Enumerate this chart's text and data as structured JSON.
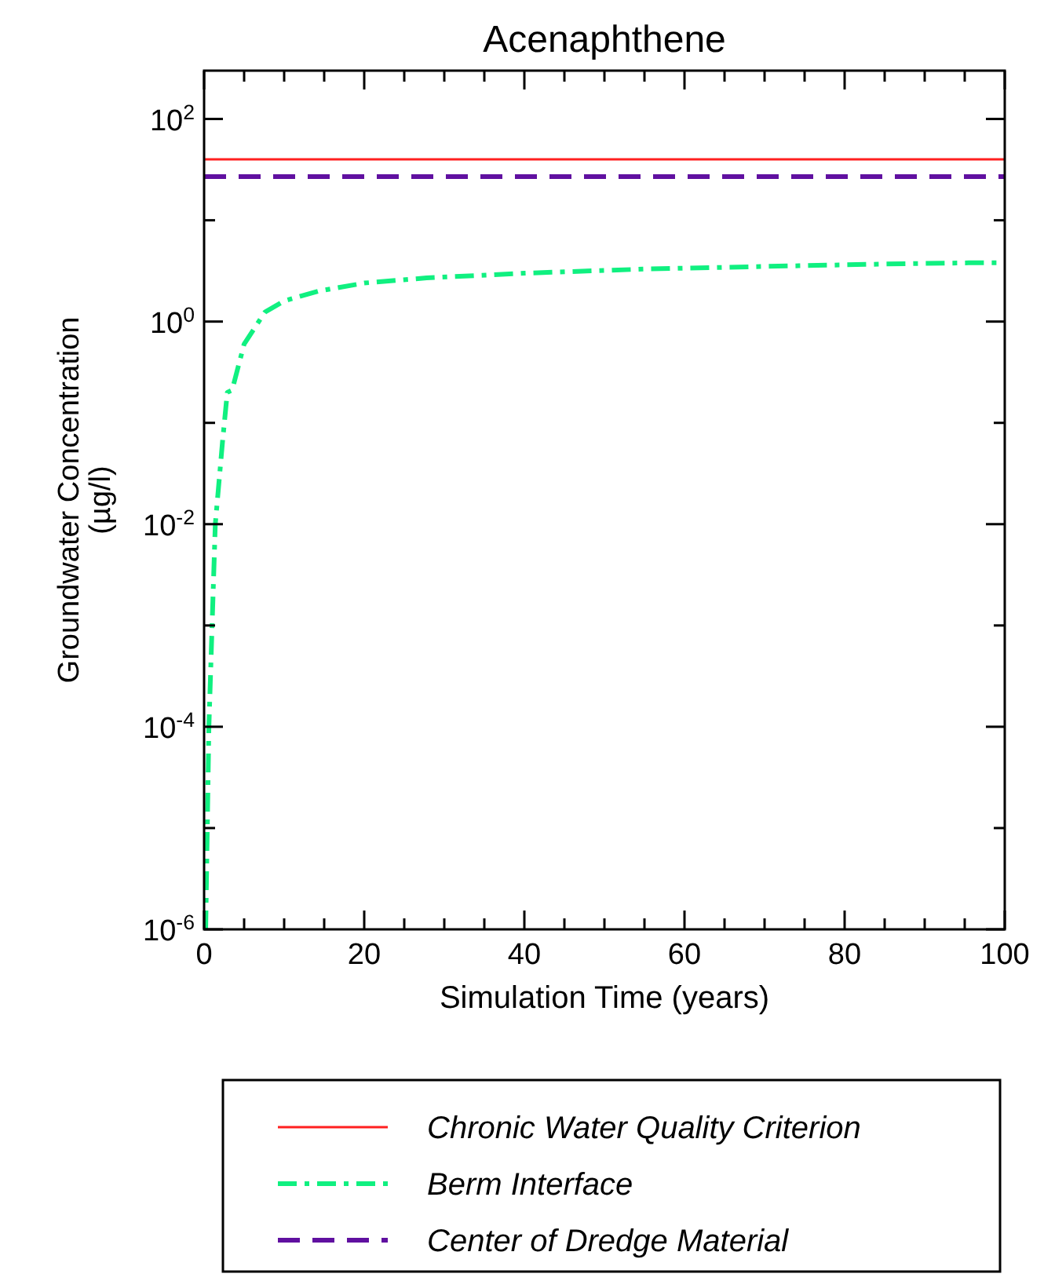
{
  "chart_data": {
    "type": "line",
    "title": "Acenaphthene",
    "xlabel": "Simulation Time (years)",
    "ylabel": "Groundwater Concentration\n(µg/l)",
    "log": "y",
    "legend": "bottom",
    "grid": false,
    "xlim": [
      0,
      100
    ],
    "xticks": [
      0,
      {
        "value": 5,
        "label": null
      },
      {
        "value": 10,
        "label": null
      },
      {
        "value": 15,
        "label": null
      },
      20,
      {
        "value": 25,
        "label": null
      },
      {
        "value": 30,
        "label": null
      },
      {
        "value": 35,
        "label": null
      },
      40,
      {
        "value": 45,
        "label": null
      },
      {
        "value": 50,
        "label": null
      },
      {
        "value": 55,
        "label": null
      },
      60,
      {
        "value": 65,
        "label": null
      },
      {
        "value": 70,
        "label": null
      },
      {
        "value": 75,
        "label": null
      },
      80,
      {
        "value": 85,
        "label": null
      },
      {
        "value": 90,
        "label": null
      },
      {
        "value": 95,
        "label": null
      },
      100
    ],
    "ylim": [
      1e-06,
      300
    ],
    "yticks": [
      {
        "value": 1e-06,
        "label": "10$^{-6}$"
      },
      {
        "value": 1e-05,
        "label": null
      },
      {
        "value": 0.0001,
        "label": "10$^{-4}$"
      },
      {
        "value": 0.001,
        "label": null
      },
      {
        "value": 0.01,
        "label": "10$^{-2}$"
      },
      {
        "value": 0.1,
        "label": null
      },
      {
        "value": 1,
        "label": "10$^{0}$"
      },
      {
        "value": 10,
        "label": null
      },
      {
        "value": 100,
        "label": "10$^{2}$"
      }
    ],
    "series": [
      {
        "name": "Chronic Water Quality Criterion",
        "color": "#ff2020",
        "line_style": "solid",
        "x": [
          0,
          100
        ],
        "values": [
          40,
          40
        ]
      },
      {
        "name": "Berm Interface",
        "color": "#10f080",
        "line_style": "dashdot",
        "x": [
          0.2,
          0.6,
          1.4,
          2.3,
          2.9,
          3.5,
          5,
          7.6,
          10,
          14.3,
          20,
          27.8,
          40,
          55,
          70,
          85,
          95.5,
          100
        ],
        "values": [
          1e-06,
          0.0001,
          0.01,
          0.065,
          0.2,
          0.21,
          0.6,
          1.24,
          1.6,
          2.0,
          2.4,
          2.7,
          3.0,
          3.3,
          3.5,
          3.7,
          3.8,
          3.8
        ]
      },
      {
        "name": "Center of Dredge Material",
        "color": "#6010a0",
        "line_style": "dashed",
        "x": [
          0,
          100
        ],
        "values": [
          27,
          27
        ]
      }
    ]
  }
}
